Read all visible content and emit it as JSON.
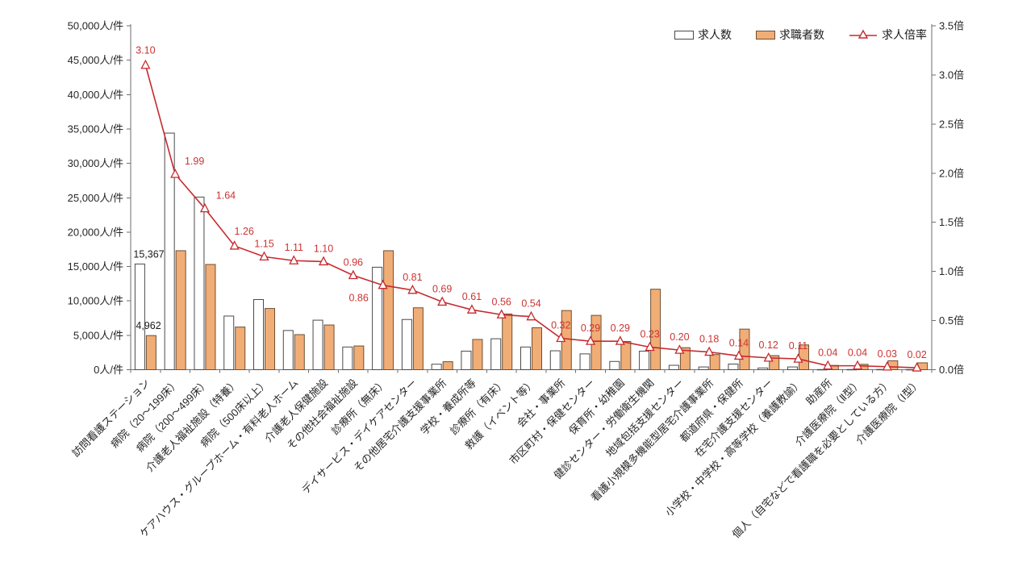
{
  "chart_data": {
    "type": "combo",
    "title": "",
    "grid": false,
    "legend_position": "top-right",
    "categories": [
      "訪問看護ステーション",
      "病院（20～199床）",
      "病院（200～499床）",
      "介護老人福祉施設（特養）",
      "病院（500床以上）",
      "ケアハウス・グループホーム・有料老人ホーム",
      "介護老人保健施設",
      "その他社会福祉施設",
      "診療所（無床）",
      "デイサービス・デイケアセンター",
      "その他居宅介護支援事業所",
      "学校・養成所等",
      "診療所（有床）",
      "救護（イベント等）",
      "会社・事業所",
      "市区町村・保健センター",
      "保育所・幼稚園",
      "健診センター・労働衛生機関",
      "地域包括支援センター",
      "看護小規模多機能型居宅介護事業所",
      "都道府県・保健所",
      "在宅介護支援センター",
      "小学校・中学校・高等学校（養護教諭）",
      "助産所",
      "介護医療院（Ⅱ型）",
      "個人（自宅などで看護職を必要としている方）",
      "介護医療院（Ⅰ型）"
    ],
    "series": [
      {
        "name": "求人数",
        "type": "bar",
        "axis": "left",
        "fill": "#ffffff",
        "stroke": "#4a4a4a",
        "values": [
          15367,
          34400,
          25100,
          7800,
          10200,
          5700,
          7200,
          3300,
          14900,
          7300,
          800,
          2700,
          4500,
          3300,
          2750,
          2300,
          1200,
          2700,
          640,
          400,
          820,
          250,
          400,
          25,
          30,
          40,
          20
        ]
      },
      {
        "name": "求職者数",
        "type": "bar",
        "axis": "left",
        "fill": "#f1ad76",
        "stroke": "#6e4f33",
        "values": [
          4962,
          17300,
          15300,
          6200,
          8900,
          5100,
          6500,
          3450,
          17300,
          9000,
          1160,
          4400,
          8100,
          6100,
          8600,
          7900,
          4100,
          11700,
          3200,
          2200,
          5900,
          2050,
          3600,
          620,
          780,
          1300,
          1000
        ]
      },
      {
        "name": "求人倍率",
        "type": "line",
        "axis": "right",
        "stroke": "#c62a2e",
        "marker": "open-triangle",
        "values": [
          3.1,
          1.99,
          1.64,
          1.26,
          1.15,
          1.11,
          1.1,
          0.96,
          0.86,
          0.81,
          0.69,
          0.61,
          0.56,
          0.54,
          0.32,
          0.29,
          0.29,
          0.23,
          0.2,
          0.18,
          0.14,
          0.12,
          0.11,
          0.04,
          0.04,
          0.03,
          0.02
        ]
      }
    ],
    "point_labels": [
      "3.10",
      "1.99",
      "1.64",
      "1.26",
      "1.15",
      "1.11",
      "1.10",
      "0.96",
      "0.86",
      "0.81",
      "0.69",
      "0.61",
      "0.56",
      "0.54",
      "0.32",
      "0.29",
      "0.29",
      "0.23",
      "0.20",
      "0.18",
      "0.14",
      "0.12",
      "0.11",
      "0.04",
      "0.04",
      "0.03",
      "0.02"
    ],
    "point_label_color": "#cc3333",
    "bar_annotations": [
      {
        "category_index": 0,
        "series_index": 0,
        "text": "15,367"
      },
      {
        "category_index": 0,
        "series_index": 1,
        "text": "4,962"
      }
    ],
    "left_axis": {
      "unit": "人/件",
      "min": 0,
      "max": 50000,
      "step": 5000,
      "tick_labels": [
        "0人/件",
        "5,000人/件",
        "10,000人/件",
        "15,000人/件",
        "20,000人/件",
        "25,000人/件",
        "30,000人/件",
        "35,000人/件",
        "40,000人/件",
        "45,000人/件",
        "50,000人/件"
      ]
    },
    "right_axis": {
      "unit": "倍",
      "min": 0,
      "max": 3.5,
      "step": 0.5,
      "tick_labels": [
        "0.0倍",
        "0.5倍",
        "1.0倍",
        "1.5倍",
        "2.0倍",
        "2.5倍",
        "3.0倍",
        "3.5倍"
      ]
    }
  }
}
